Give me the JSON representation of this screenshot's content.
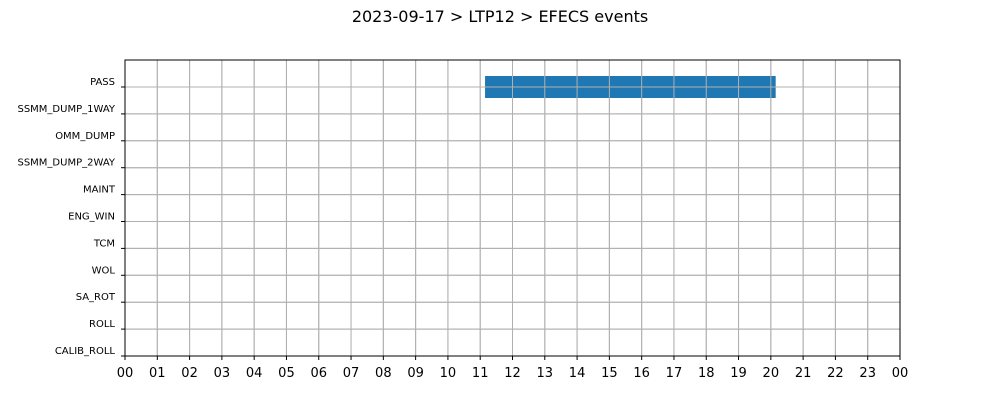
{
  "chart_data": {
    "type": "bar",
    "orientation": "horizontal-timeline",
    "title": "2023-09-17 > LTP12 > EFECS events",
    "xlabel": "",
    "ylabel": "",
    "categories": [
      "PASS",
      "SSMM_DUMP_1WAY",
      "OMM_DUMP",
      "SSMM_DUMP_2WAY",
      "MAINT",
      "ENG_WIN",
      "TCM",
      "WOL",
      "SA_ROT",
      "ROLL",
      "CALIB_ROLL"
    ],
    "x_tick_labels": [
      "00",
      "01",
      "02",
      "03",
      "04",
      "05",
      "06",
      "07",
      "08",
      "09",
      "10",
      "11",
      "12",
      "13",
      "14",
      "15",
      "16",
      "17",
      "18",
      "19",
      "20",
      "21",
      "22",
      "23",
      "00"
    ],
    "xlim": [
      0,
      24
    ],
    "x_unit": "hour",
    "grid": true,
    "bar_color": "#1f77b4",
    "events": [
      {
        "category": "PASS",
        "start": 11.15,
        "end": 20.15
      }
    ]
  }
}
